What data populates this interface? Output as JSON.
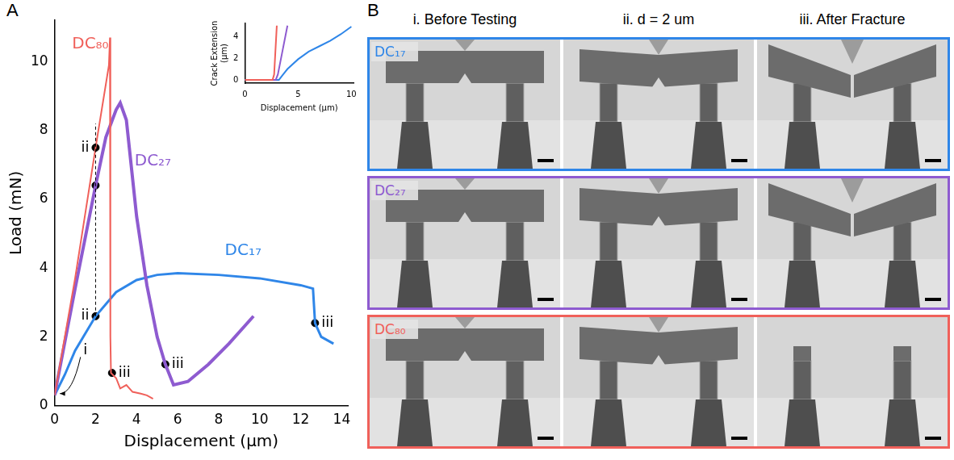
{
  "chart_data": [
    {
      "type": "line",
      "x_label": "Displacement (µm)",
      "y_label": "Load (mN)",
      "xlim": [
        0,
        14.3
      ],
      "xticks": [
        0,
        2,
        4,
        6,
        8,
        10,
        12,
        14
      ],
      "ylim": [
        0,
        11.2
      ],
      "yticks": [
        0,
        2,
        4,
        6,
        8,
        10
      ],
      "grid": false,
      "series": [
        {
          "name": "DC₈₀",
          "color": "#f0605a",
          "x": [
            0,
            1,
            2,
            2.65,
            2.7,
            2.72,
            2.75,
            3.0,
            3.2,
            3.5,
            3.8,
            4.2,
            4.5,
            4.8
          ],
          "values": [
            0.3,
            3.7,
            7.5,
            9.9,
            10.7,
            2.0,
            0.95,
            0.8,
            0.5,
            0.6,
            0.4,
            0.35,
            0.3,
            0.2
          ],
          "markers": [
            {
              "x": 2,
              "y": 7.5,
              "label": "ii"
            },
            {
              "x": 2.8,
              "y": 0.95,
              "label": "iii"
            }
          ]
        },
        {
          "name": "DC₂₇",
          "color": "#8e5bd0",
          "x": [
            0,
            1,
            2,
            2.5,
            3.0,
            3.2,
            3.5,
            4.0,
            4.5,
            5.0,
            5.4,
            5.8,
            6.5,
            7.5,
            8.5,
            9.7
          ],
          "values": [
            0.3,
            3.4,
            6.4,
            7.8,
            8.6,
            8.8,
            8.3,
            5.5,
            3.5,
            2.0,
            1.2,
            0.6,
            0.7,
            1.2,
            1.8,
            2.6
          ],
          "markers": [
            {
              "x": 2,
              "y": 6.4
            },
            {
              "x": 5.4,
              "y": 1.2,
              "label": "iii"
            }
          ]
        },
        {
          "name": "DC₁₇",
          "color": "#2f86e8",
          "x": [
            0,
            0.5,
            1,
            2,
            3,
            4,
            5,
            6,
            8,
            10,
            12,
            12.6,
            12.7,
            13.0,
            13.6
          ],
          "values": [
            0.3,
            0.9,
            1.6,
            2.6,
            3.3,
            3.65,
            3.8,
            3.85,
            3.8,
            3.7,
            3.5,
            3.4,
            2.4,
            2.0,
            1.8
          ],
          "markers": [
            {
              "x": 2,
              "y": 2.6,
              "label": "ii"
            },
            {
              "x": 12.7,
              "y": 2.4,
              "label": "iii"
            }
          ]
        }
      ],
      "annotations": [
        {
          "text": "i",
          "x": 1.5,
          "y": 1.6,
          "arrow_to": [
            0.1,
            0.3
          ]
        }
      ],
      "reference_lines": [
        {
          "x": 2,
          "ymin": 2.6,
          "ymax": 8.2,
          "line_style": "dashed"
        }
      ]
    },
    {
      "type": "line",
      "x_label": "Displacement (µm)",
      "y_label": "Crack Extension (µm)",
      "xlim": [
        0,
        10.2
      ],
      "xticks": [
        0,
        5,
        10
      ],
      "ylim": [
        -0.3,
        5.2
      ],
      "yticks": [
        0,
        2,
        4
      ],
      "grid": false,
      "series": [
        {
          "name": "DC₈₀",
          "color": "#f0605a",
          "x": [
            0,
            2.6,
            2.75,
            3.0
          ],
          "values": [
            0,
            0,
            0.5,
            5
          ]
        },
        {
          "name": "DC₂₇",
          "color": "#8e5bd0",
          "x": [
            0,
            2.9,
            3.1,
            3.5,
            4.0
          ],
          "values": [
            0,
            0,
            0.5,
            2.5,
            5
          ]
        },
        {
          "name": "DC₁₇",
          "color": "#2f86e8",
          "x": [
            0,
            3.2,
            3.6,
            4,
            5,
            6,
            7,
            8,
            9,
            10
          ],
          "values": [
            0,
            0,
            0.5,
            1,
            1.9,
            2.6,
            3.1,
            3.6,
            4.2,
            4.9
          ]
        }
      ]
    }
  ],
  "panel_letters": [
    "A",
    "B"
  ],
  "image_grid": {
    "columns": [
      "i. Before Testing",
      "ii. d = 2 um",
      "iii. After Fracture"
    ],
    "rows": [
      {
        "label": "DC₁₇",
        "color": "#2f86e8"
      },
      {
        "label": "DC₂₇",
        "color": "#8e5bd0"
      },
      {
        "label": "DC₈₀",
        "color": "#f0605a"
      }
    ]
  }
}
